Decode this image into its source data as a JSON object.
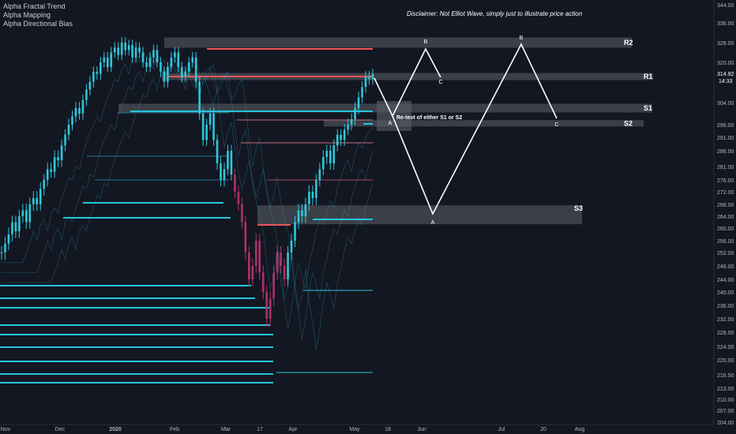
{
  "indicators": [
    "Alpha Fractal Trend",
    "Alpha Mapping",
    "Alpha Directional Bias"
  ],
  "disclaimer": "Disclaimer: Not Elliot Wave, simply just to illustrate price action",
  "colors": {
    "background": "#131722",
    "candle_cyan": "#2ec7d9",
    "candle_pink": "#b0306a",
    "resistance_red": "#f0525a",
    "support_cyan": "#26c6da",
    "zone_grey": "#3a3d46",
    "projection_white": "#ffffff",
    "price_tag": "#26c6da"
  },
  "chart_data": {
    "type": "candlestick",
    "symbol_context": "price chart with support/resistance zones and projected path",
    "y_axis": {
      "ticks": [
        344.0,
        336.0,
        328.0,
        320.0,
        314.92,
        304.0,
        296.0,
        291.0,
        286.0,
        281.0,
        276.0,
        272.0,
        268.0,
        264.0,
        260.0,
        256.0,
        252.0,
        248.0,
        244.0,
        240.0,
        236.0,
        232.0,
        228.0,
        224.0,
        220.0,
        216.5,
        213.0,
        210.0,
        207.0,
        204.0
      ],
      "tick_labels": [
        "344.00",
        "336.00",
        "328.00",
        "320.00",
        "304.00",
        "296.00",
        "291.00",
        "286.00",
        "281.00",
        "276.00",
        "272.00",
        "268.00",
        "264.00",
        "260.00",
        "256.00",
        "252.00",
        "248.00",
        "244.00",
        "240.00",
        "236.00",
        "232.00",
        "228.00",
        "224.00",
        "220.00",
        "216.50",
        "213.00",
        "210.00",
        "207.00",
        "204.00"
      ],
      "current_price": "314.92",
      "countdown": "14:33"
    },
    "x_axis": {
      "tick_labels": [
        "Nov",
        "Dec",
        "2020",
        "Feb",
        "Mar",
        "17",
        "Apr",
        "May",
        "18",
        "Jun",
        "Jul",
        "20",
        "Aug"
      ]
    },
    "zones": [
      {
        "label": "R2",
        "price": 328.0
      },
      {
        "label": "R1",
        "price": 314.0
      },
      {
        "label": "S1",
        "price": 302.0
      },
      {
        "label": "S2",
        "price": 296.5
      },
      {
        "label": "S3",
        "price": 264.5
      }
    ],
    "projection_points": [
      {
        "label": "A",
        "price": 299.0
      },
      {
        "label": "B",
        "price": 326.0
      },
      {
        "label": "C",
        "price": 314.0
      },
      {
        "label": "A",
        "price": 264.0
      },
      {
        "label": "B",
        "price": 328.0
      },
      {
        "label": "C",
        "price": 297.0
      }
    ],
    "annotation": "Re-test of either S1 or S2",
    "close_series": [
      252,
      255,
      258,
      262,
      259,
      264,
      266,
      262,
      268,
      270,
      268,
      273,
      276,
      280,
      279,
      284,
      283,
      288,
      292,
      296,
      299,
      302,
      300,
      305,
      309,
      312,
      316,
      315,
      320,
      322,
      318,
      324,
      326,
      323,
      328,
      325,
      327,
      322,
      326,
      324,
      320,
      318,
      322,
      325,
      320,
      316,
      312,
      318,
      322,
      324,
      318,
      314,
      316,
      320,
      322,
      312,
      300,
      290,
      296,
      300,
      290,
      282,
      276,
      280,
      286,
      278,
      272,
      268,
      262,
      252,
      244,
      248,
      256,
      246,
      240,
      232,
      238,
      246,
      252,
      248,
      244,
      252,
      256,
      262,
      266,
      264,
      268,
      272,
      270,
      276,
      280,
      284,
      286,
      282,
      288,
      292,
      290,
      294,
      296,
      298,
      302,
      306,
      310,
      314,
      313,
      315
    ]
  }
}
